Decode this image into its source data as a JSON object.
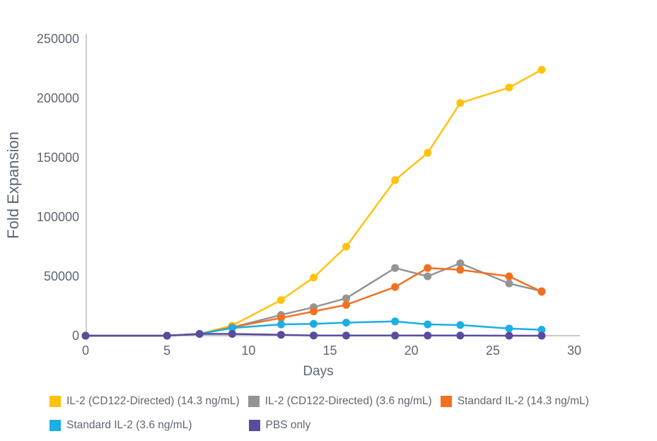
{
  "chart_data": {
    "type": "line",
    "title": "",
    "xlabel": "Days",
    "ylabel": "Fold Expansion",
    "xlim": [
      0,
      30
    ],
    "ylim": [
      0,
      250000
    ],
    "x_ticks": [
      "0",
      "5",
      "10",
      "15",
      "20",
      "25",
      "30"
    ],
    "y_ticks": [
      "0",
      "50000",
      "100000",
      "150000",
      "200000",
      "250000"
    ],
    "grid": false,
    "legend_position": "bottom",
    "series": [
      {
        "name": "IL-2 (CD122-Directed) (14.3 ng/mL)",
        "color": "#FFC20E",
        "points": [
          [
            0,
            0
          ],
          [
            5,
            0
          ],
          [
            7,
            1500
          ],
          [
            9,
            8500
          ],
          [
            12,
            30000
          ],
          [
            14,
            49000
          ],
          [
            16,
            75000
          ],
          [
            19,
            131000
          ],
          [
            21,
            154000
          ],
          [
            23,
            196000
          ],
          [
            26,
            209000
          ],
          [
            28,
            224000
          ]
        ]
      },
      {
        "name": "IL-2 (CD122-Directed) (3.6 ng/mL)",
        "color": "#949494",
        "points": [
          [
            0,
            0
          ],
          [
            5,
            0
          ],
          [
            7,
            1500
          ],
          [
            9,
            7000
          ],
          [
            12,
            17500
          ],
          [
            14,
            24000
          ],
          [
            16,
            31500
          ],
          [
            19,
            57000
          ],
          [
            21,
            50000
          ],
          [
            23,
            61000
          ],
          [
            26,
            44000
          ],
          [
            28,
            37500
          ]
        ]
      },
      {
        "name": "Standard IL-2 (14.3 ng/mL)",
        "color": "#F37021",
        "points": [
          [
            0,
            0
          ],
          [
            5,
            0
          ],
          [
            7,
            1500
          ],
          [
            9,
            7000
          ],
          [
            12,
            15000
          ],
          [
            14,
            20500
          ],
          [
            16,
            26000
          ],
          [
            19,
            41000
          ],
          [
            21,
            57000
          ],
          [
            23,
            55500
          ],
          [
            26,
            50000
          ],
          [
            28,
            37000
          ]
        ]
      },
      {
        "name": "Standard IL-2 (3.6 ng/mL)",
        "color": "#1CAEE4",
        "points": [
          [
            0,
            0
          ],
          [
            5,
            0
          ],
          [
            7,
            1500
          ],
          [
            9,
            6500
          ],
          [
            12,
            9500
          ],
          [
            14,
            10000
          ],
          [
            16,
            11000
          ],
          [
            19,
            12000
          ],
          [
            21,
            9500
          ],
          [
            23,
            9000
          ],
          [
            26,
            6000
          ],
          [
            28,
            5000
          ]
        ]
      },
      {
        "name": "PBS only",
        "color": "#5B4B9E",
        "points": [
          [
            0,
            0
          ],
          [
            5,
            0
          ],
          [
            7,
            1500
          ],
          [
            9,
            1500
          ],
          [
            12,
            800
          ],
          [
            14,
            200
          ],
          [
            16,
            100
          ],
          [
            19,
            100
          ],
          [
            21,
            100
          ],
          [
            23,
            100
          ],
          [
            26,
            0
          ],
          [
            28,
            0
          ]
        ]
      }
    ]
  },
  "colors": {
    "axis": "#a7a9ac",
    "text": "#5f6670"
  }
}
